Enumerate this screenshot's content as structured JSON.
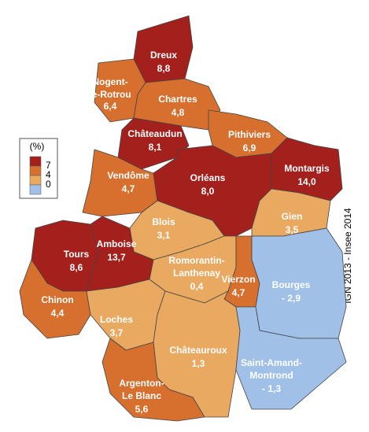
{
  "legend": {
    "title": "(%)",
    "thresholds": [
      7,
      4,
      0
    ],
    "colors": [
      "#a3201c",
      "#d7702e",
      "#e9a961",
      "#a0c0e8"
    ]
  },
  "credit": "IGN 2013 - Insee 2014",
  "regions": [
    {
      "name": [
        "Dreux"
      ],
      "value": 8.8,
      "label": "8,8"
    },
    {
      "name": [
        "Nogent-",
        "le-Rotrou"
      ],
      "value": 6.4,
      "label": "6,4"
    },
    {
      "name": [
        "Chartres"
      ],
      "value": 4.8,
      "label": "4,8"
    },
    {
      "name": [
        "Châteaudun"
      ],
      "value": 8.1,
      "label": "8,1"
    },
    {
      "name": [
        "Pithiviers"
      ],
      "value": 6.9,
      "label": "6,9"
    },
    {
      "name": [
        "Vendôme"
      ],
      "value": 4.7,
      "label": "4,7"
    },
    {
      "name": [
        "Orléans"
      ],
      "value": 8.0,
      "label": "8,0"
    },
    {
      "name": [
        "Montargis"
      ],
      "value": 14.0,
      "label": "14,0"
    },
    {
      "name": [
        "Gien"
      ],
      "value": 3.5,
      "label": "3,5"
    },
    {
      "name": [
        "Blois"
      ],
      "value": 3.1,
      "label": "3,1"
    },
    {
      "name": [
        "Tours"
      ],
      "value": 8.6,
      "label": "8,6"
    },
    {
      "name": [
        "Amboise"
      ],
      "value": 13.7,
      "label": "13,7"
    },
    {
      "name": [
        "Romorantin-",
        "Lanthenay"
      ],
      "value": 0.4,
      "label": "0,4"
    },
    {
      "name": [
        "Vierzon"
      ],
      "value": 4.7,
      "label": "4,7"
    },
    {
      "name": [
        "Bourges"
      ],
      "value": -2.9,
      "label": "- 2,9"
    },
    {
      "name": [
        "Chinon"
      ],
      "value": 4.4,
      "label": "4,4"
    },
    {
      "name": [
        "Loches"
      ],
      "value": 3.7,
      "label": "3,7"
    },
    {
      "name": [
        "Châteauroux"
      ],
      "value": 1.3,
      "label": "1,3"
    },
    {
      "name": [
        "Saint-Amand-",
        "Montrond"
      ],
      "value": -1.3,
      "label": "- 1,3"
    },
    {
      "name": [
        "Argenton-",
        "Le Blanc"
      ],
      "value": 5.6,
      "label": "5,6"
    }
  ]
}
